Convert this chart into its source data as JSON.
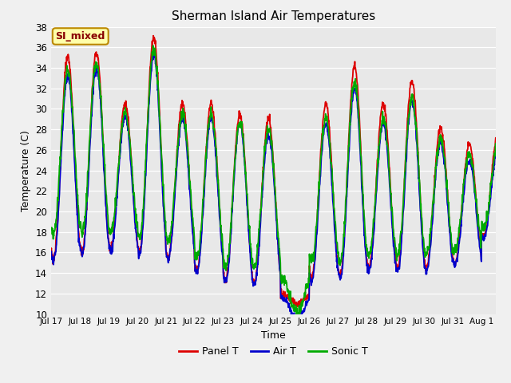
{
  "title": "Sherman Island Air Temperatures",
  "xlabel": "Time",
  "ylabel": "Temperature (C)",
  "ylim": [
    10,
    38
  ],
  "yticks": [
    10,
    12,
    14,
    16,
    18,
    20,
    22,
    24,
    26,
    28,
    30,
    32,
    34,
    36,
    38
  ],
  "fig_bg": "#f0f0f0",
  "axes_bg": "#e8e8e8",
  "panel_t_color": "#dd0000",
  "air_t_color": "#0000cc",
  "sonic_t_color": "#00aa00",
  "annotation_text": "SI_mixed",
  "annotation_bg": "#ffffaa",
  "annotation_border": "#bb8800",
  "annotation_text_color": "#880000",
  "legend_labels": [
    "Panel T",
    "Air T",
    "Sonic T"
  ],
  "xtick_labels": [
    "Jul 17",
    "Jul 18",
    "Jul 19",
    "Jul 20",
    "Jul 21",
    "Jul 22",
    "Jul 23",
    "Jul 24",
    "Jul 25",
    "Jul 26",
    "Jul 27",
    "Jul 28",
    "Jul 29",
    "Jul 30",
    "Jul 31",
    "Aug 1"
  ],
  "grid_color": "#ffffff",
  "linewidth": 1.3,
  "n_days": 15.5,
  "panel_peaks": [
    35.0,
    35.5,
    30.5,
    37.0,
    30.5,
    30.5,
    29.5,
    29.0,
    11.0,
    30.5,
    34.2,
    30.5,
    32.7,
    28.2,
    26.5,
    27.5
  ],
  "panel_mins": [
    15.3,
    16.0,
    16.5,
    16.0,
    15.5,
    14.2,
    13.2,
    13.0,
    12.0,
    13.5,
    13.8,
    14.5,
    14.5,
    14.5,
    15.0,
    17.5
  ],
  "air_peak_offsets": [
    1.8,
    1.5,
    1.2,
    1.8,
    1.5,
    1.5,
    1.0,
    1.5,
    1.5,
    2.0,
    2.2,
    2.0,
    2.0,
    1.5,
    1.5,
    1.5
  ],
  "air_min_offsets": [
    0.2,
    0.2,
    0.3,
    0.2,
    0.2,
    0.2,
    0.2,
    0.2,
    0.5,
    0.3,
    0.3,
    0.3,
    0.3,
    0.3,
    0.2,
    0.2
  ],
  "sonic_peak_offsets": [
    1.2,
    1.0,
    1.0,
    1.2,
    1.0,
    1.0,
    0.8,
    1.0,
    1.0,
    1.5,
    1.5,
    1.5,
    1.5,
    1.2,
    1.0,
    1.0
  ],
  "sonic_min_offsets": [
    -2.5,
    -1.8,
    -1.5,
    -1.5,
    -1.5,
    -1.2,
    -1.2,
    -1.5,
    -1.5,
    -1.5,
    -1.2,
    -1.2,
    -1.2,
    -1.2,
    -1.2,
    -0.8
  ],
  "peak_phase": 0.58,
  "pts_per_day": 96
}
